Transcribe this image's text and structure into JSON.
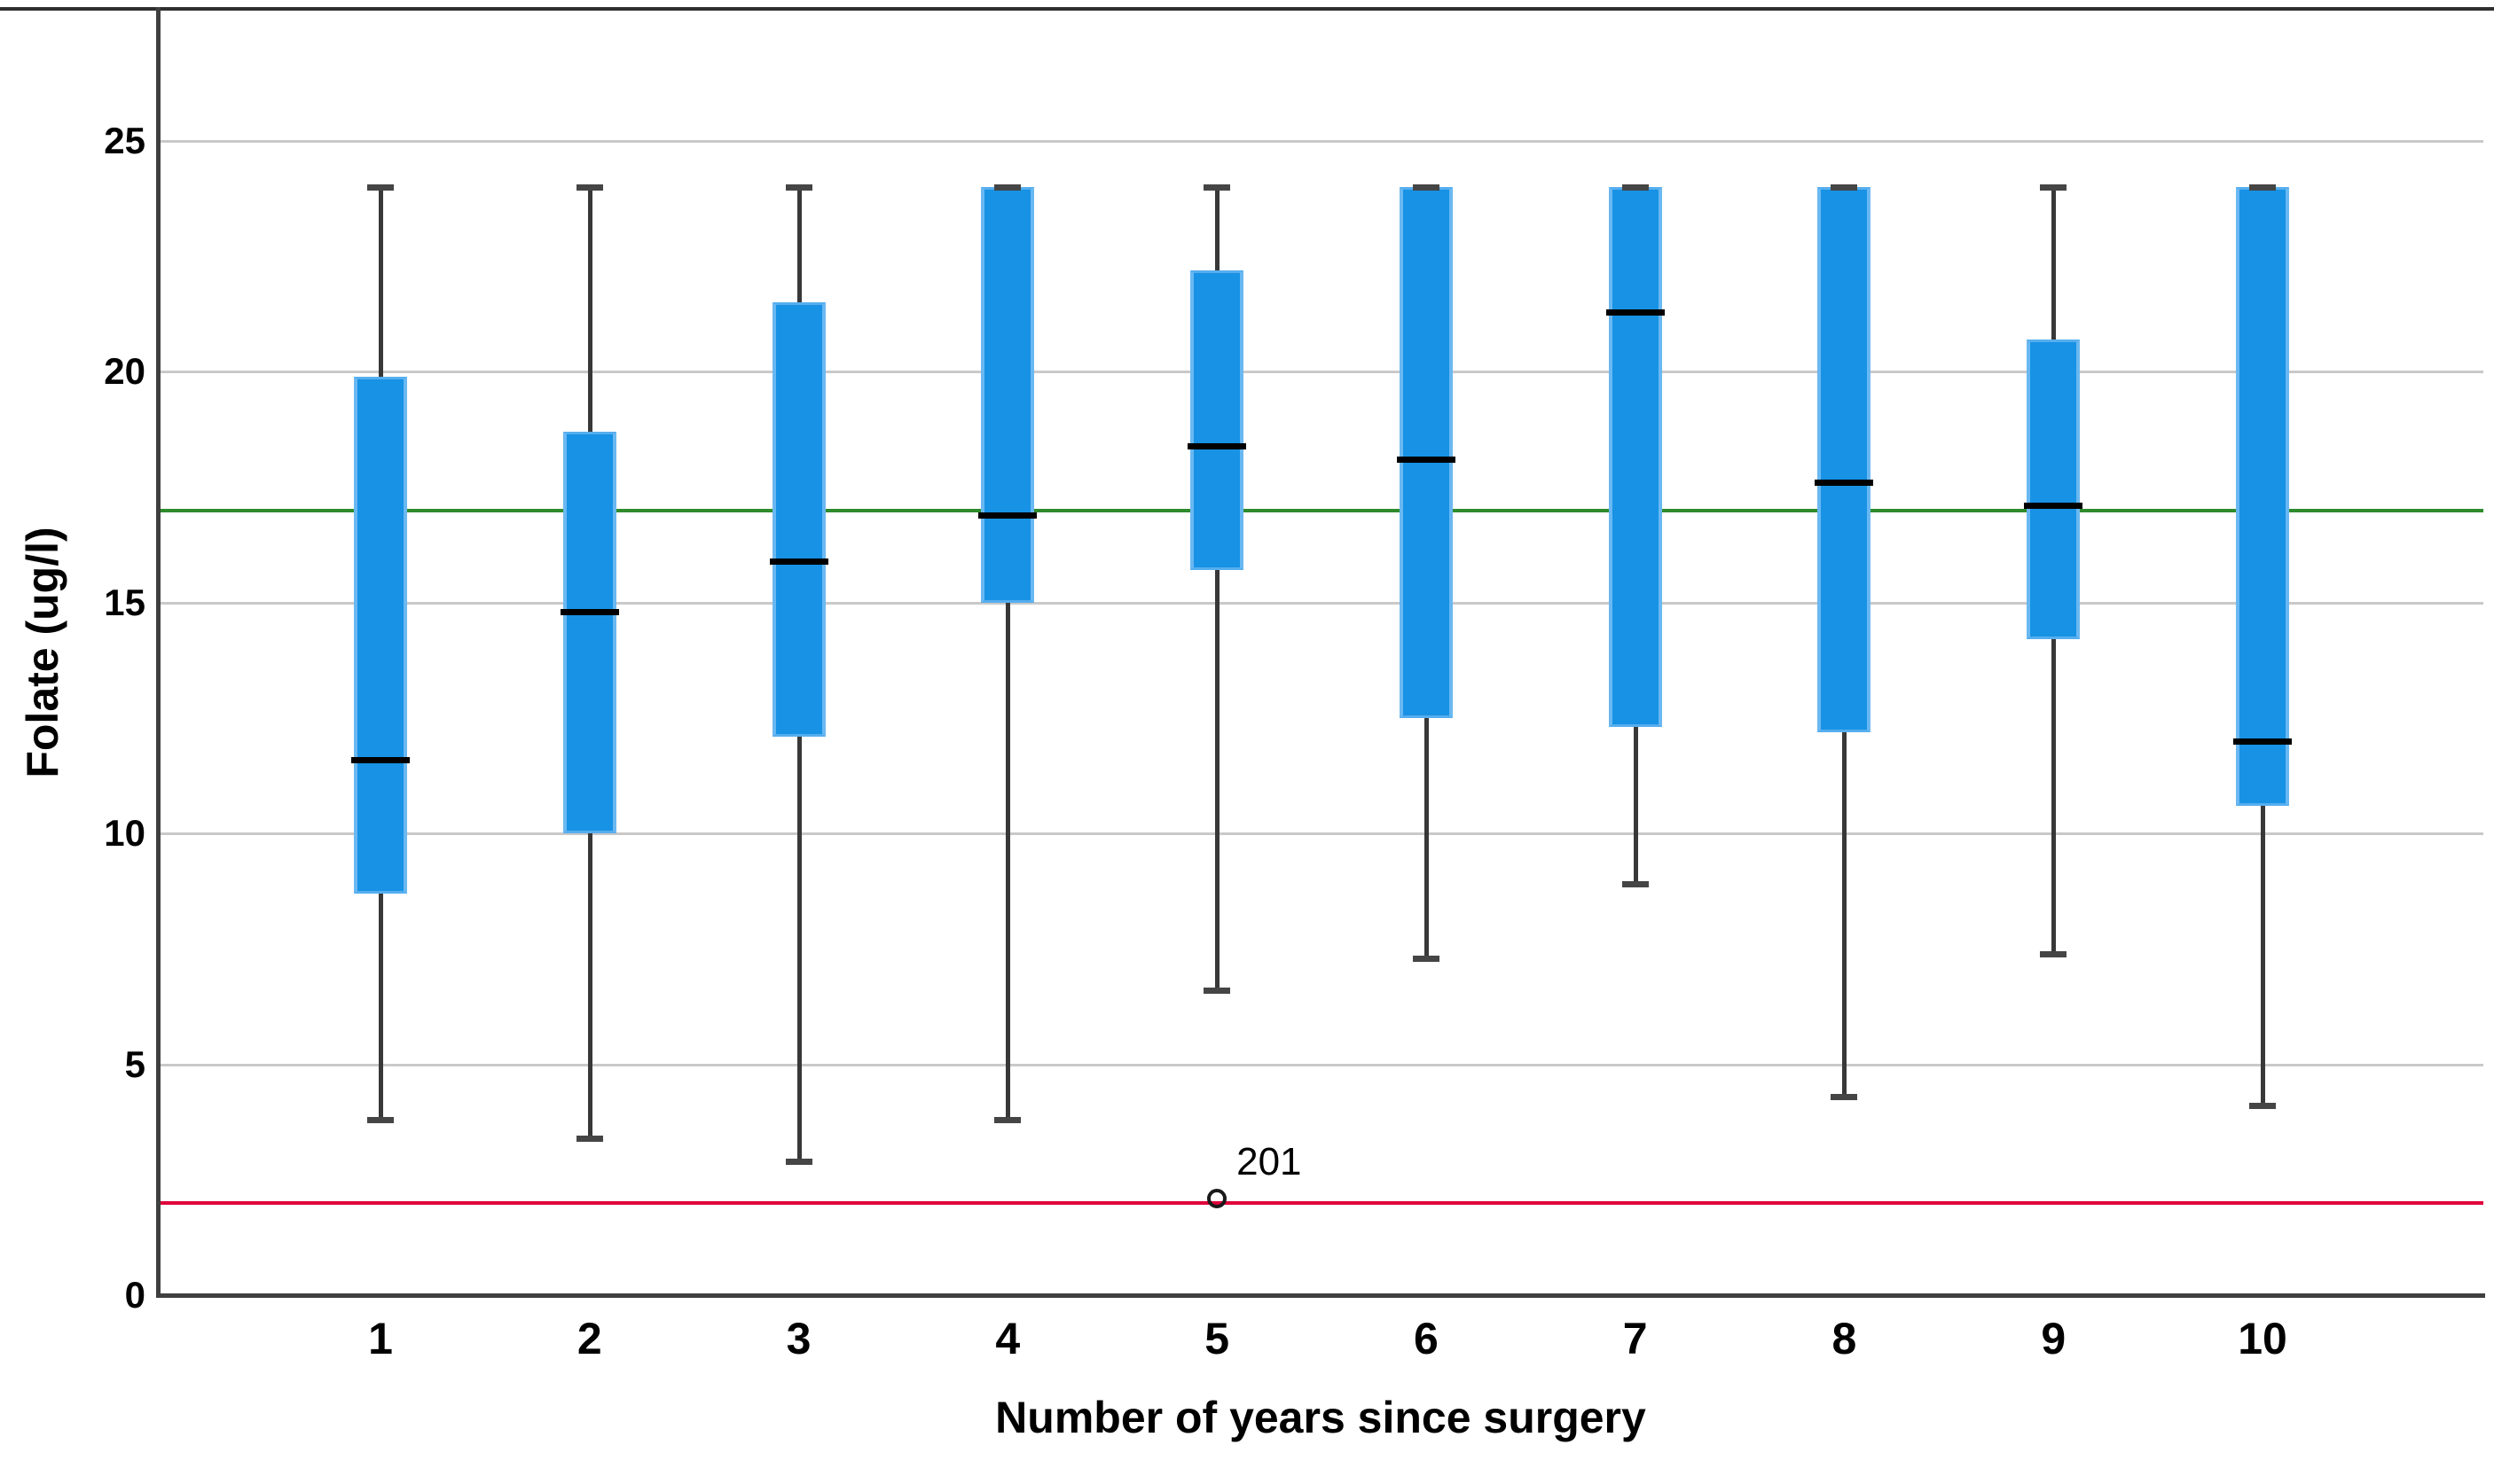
{
  "chart_data": {
    "type": "boxplot",
    "title": "",
    "xlabel": "Number of years since surgery",
    "ylabel": "Folate (ug/l)",
    "ylim": [
      0,
      27.9
    ],
    "yticks": [
      0,
      5,
      10,
      15,
      20,
      25
    ],
    "categories": [
      "1",
      "2",
      "3",
      "4",
      "5",
      "6",
      "7",
      "8",
      "9",
      "10"
    ],
    "grid": "horizontal",
    "legend": "none",
    "boxes": [
      {
        "category": "1",
        "whisker_low": 3.8,
        "q1": 8.7,
        "median": 11.6,
        "q3": 19.9,
        "whisker_high": 24
      },
      {
        "category": "2",
        "whisker_low": 3.4,
        "q1": 10.0,
        "median": 14.8,
        "q3": 18.7,
        "whisker_high": 24
      },
      {
        "category": "3",
        "whisker_low": 2.9,
        "q1": 12.1,
        "median": 15.9,
        "q3": 21.5,
        "whisker_high": 24
      },
      {
        "category": "4",
        "whisker_low": 3.8,
        "q1": 15.0,
        "median": 16.9,
        "q3": 24,
        "whisker_high": 24
      },
      {
        "category": "5",
        "whisker_low": 6.6,
        "q1": 15.7,
        "median": 18.4,
        "q3": 22.2,
        "whisker_high": 24
      },
      {
        "category": "6",
        "whisker_low": 7.3,
        "q1": 12.5,
        "median": 18.1,
        "q3": 24,
        "whisker_high": 24
      },
      {
        "category": "7",
        "whisker_low": 8.9,
        "q1": 12.3,
        "median": 21.3,
        "q3": 24,
        "whisker_high": 24
      },
      {
        "category": "8",
        "whisker_low": 4.3,
        "q1": 12.2,
        "median": 17.6,
        "q3": 24,
        "whisker_high": 24
      },
      {
        "category": "9",
        "whisker_low": 7.4,
        "q1": 14.2,
        "median": 17.1,
        "q3": 20.7,
        "whisker_high": 24
      },
      {
        "category": "10",
        "whisker_low": 4.1,
        "q1": 10.6,
        "median": 12.0,
        "q3": 24,
        "whisker_high": 24
      }
    ],
    "outliers": [
      {
        "category": "5",
        "value": 2.1,
        "label": "201"
      }
    ],
    "reference_lines": [
      {
        "name": "upper-reference-line",
        "value": 17,
        "color": "#2e8b2e"
      },
      {
        "name": "lower-reference-line",
        "value": 2,
        "color": "#e0003a"
      }
    ],
    "colors": {
      "box_fill": "#1792e5",
      "box_edge": "#6ab8f2",
      "median": "#000000",
      "whisker": "#383838",
      "gridline": "#c9c9c9",
      "axis": "#3f3f3f"
    }
  }
}
